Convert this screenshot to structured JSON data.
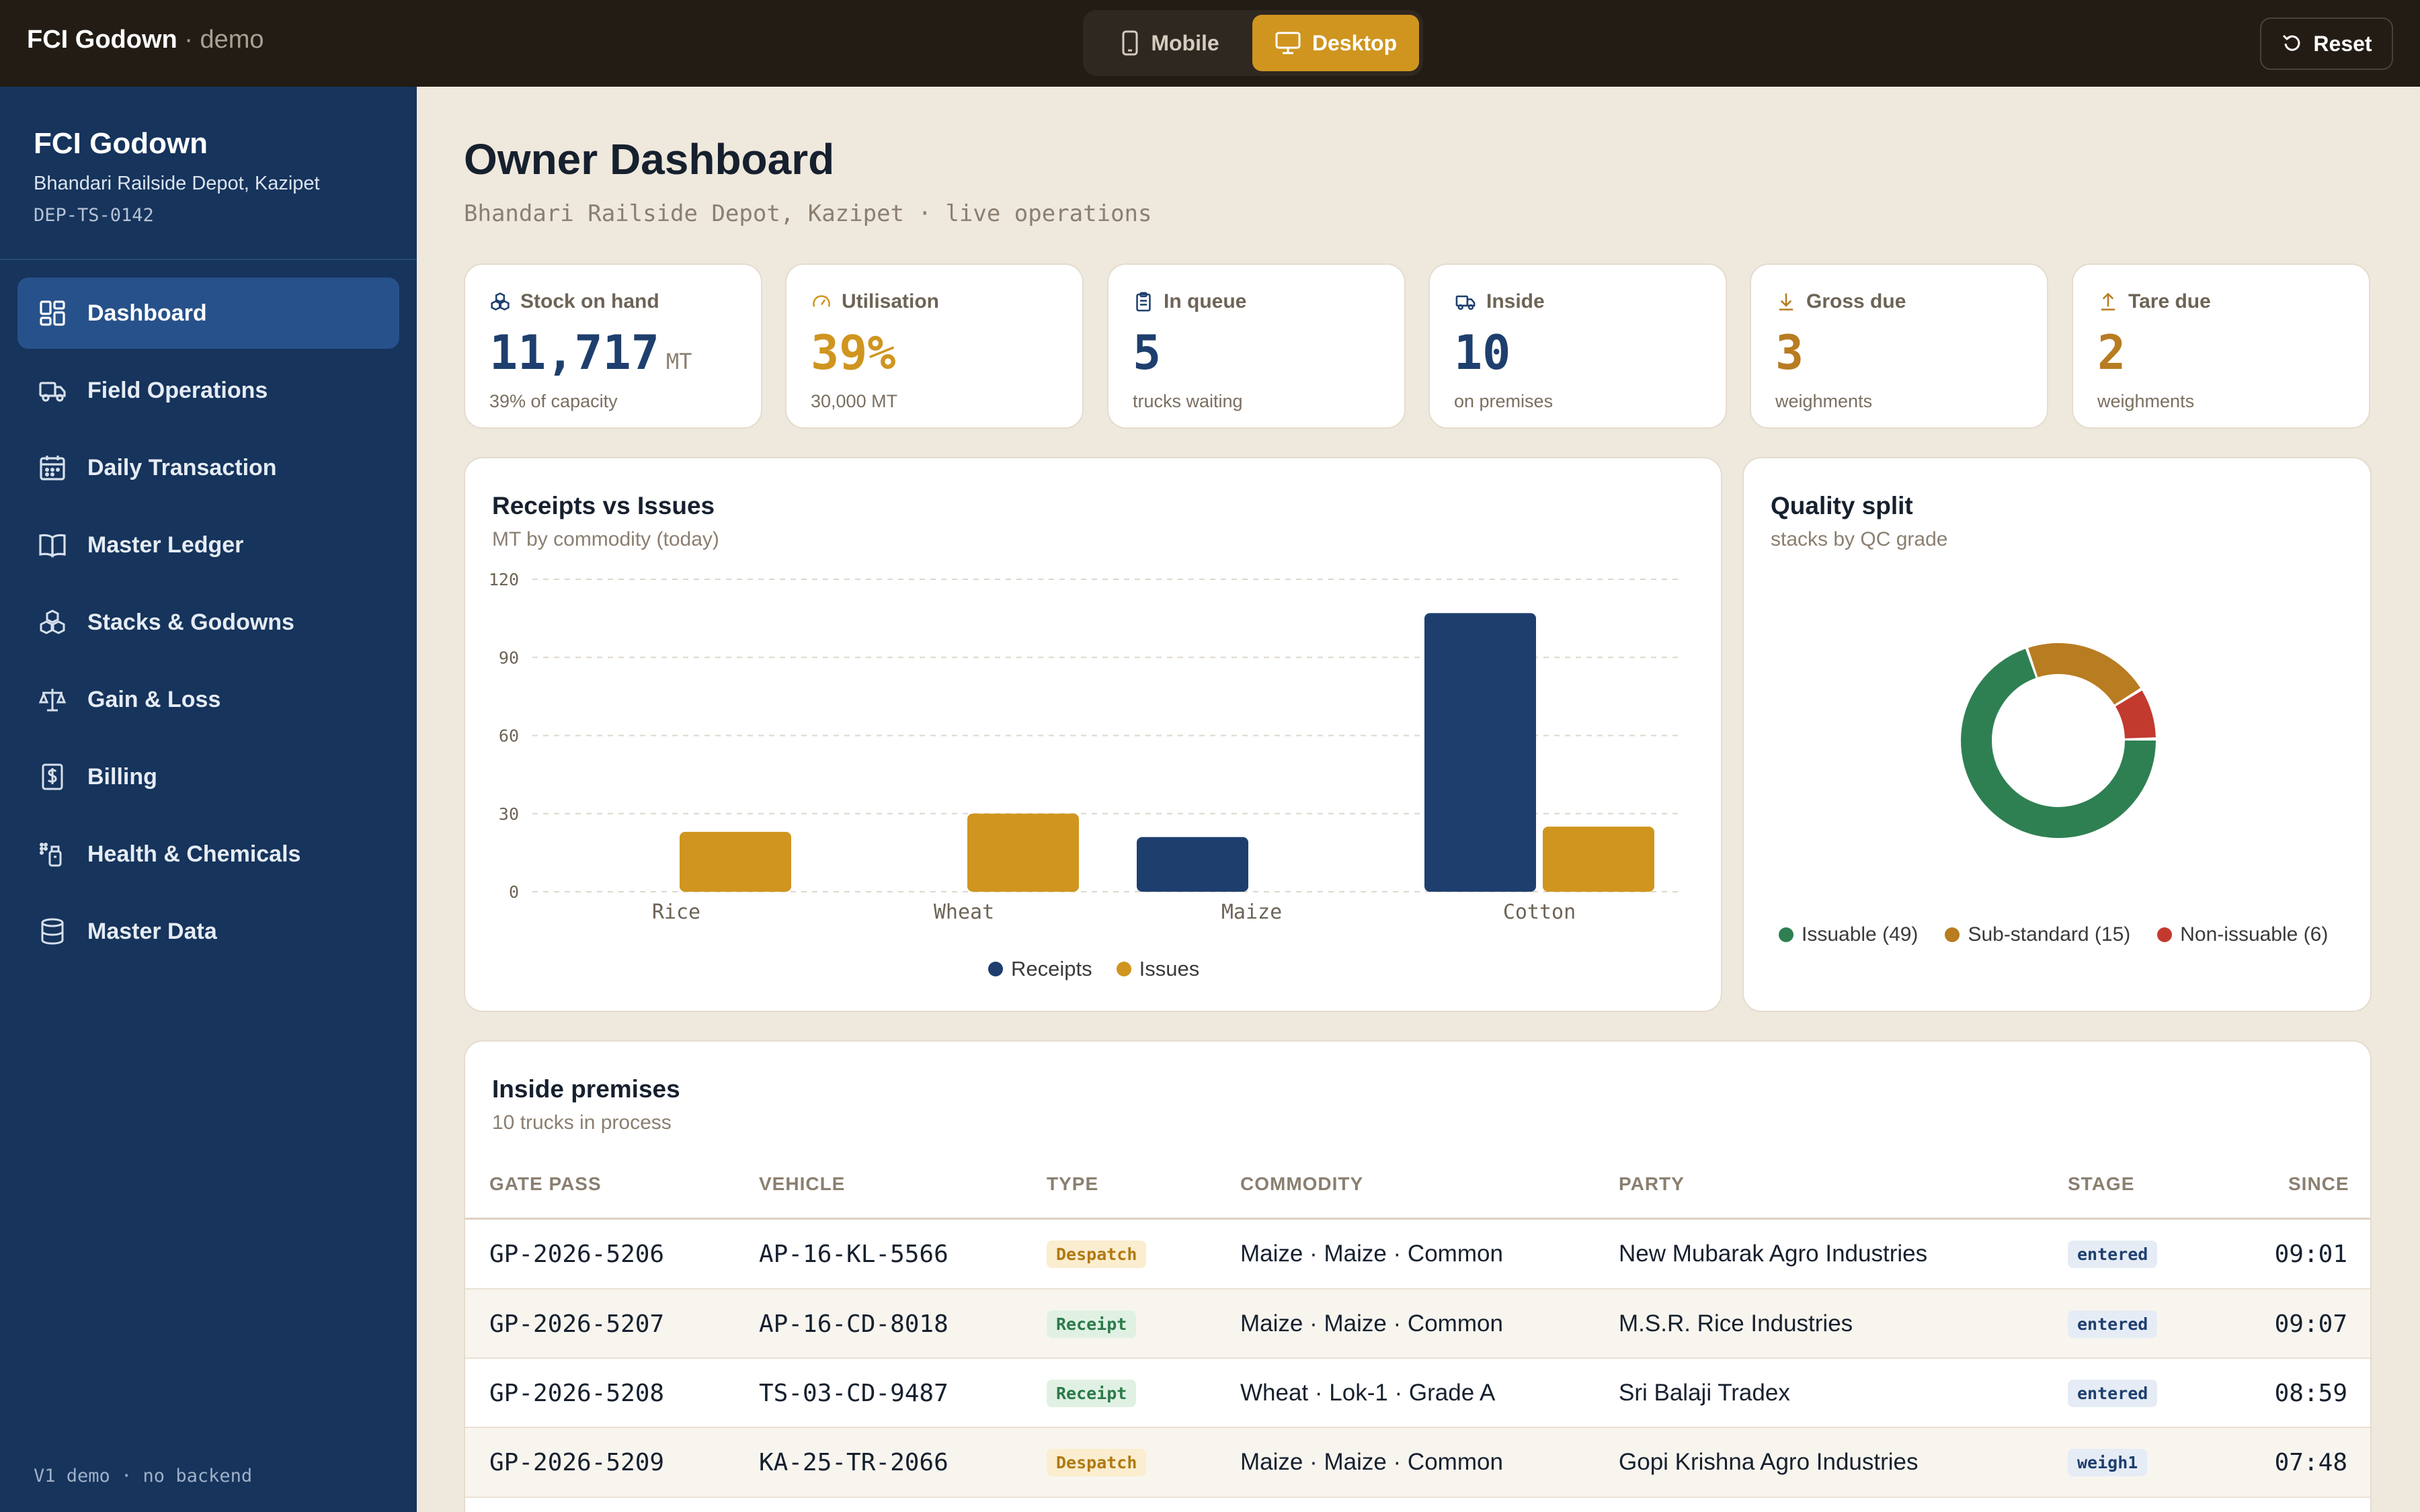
{
  "topbar": {
    "brand": "FCI Godown",
    "brand_suffix": "· demo",
    "mobile_label": "Mobile",
    "desktop_label": "Desktop",
    "reset_label": "Reset"
  },
  "sidebar": {
    "title": "FCI Godown",
    "subtitle": "Bhandari Railside Depot, Kazipet",
    "code": "DEP-TS-0142",
    "items": [
      {
        "label": "Dashboard",
        "icon": "dashboard-icon",
        "active": true
      },
      {
        "label": "Field Operations",
        "icon": "truck-icon"
      },
      {
        "label": "Daily Transaction",
        "icon": "calendar-icon"
      },
      {
        "label": "Master Ledger",
        "icon": "book-icon"
      },
      {
        "label": "Stacks & Godowns",
        "icon": "boxes-icon"
      },
      {
        "label": "Gain & Loss",
        "icon": "scale-icon"
      },
      {
        "label": "Billing",
        "icon": "receipt-icon"
      },
      {
        "label": "Health & Chemicals",
        "icon": "spray-icon"
      },
      {
        "label": "Master Data",
        "icon": "database-icon"
      }
    ],
    "footer": "V1 demo · no backend"
  },
  "header": {
    "title": "Owner Dashboard",
    "subtitle": "Bhandari Railside Depot, Kazipet · live operations"
  },
  "kpis": [
    {
      "label": "Stock on hand",
      "value": "11,717",
      "unit": "MT",
      "note": "39% of capacity",
      "icon": "boxes-icon",
      "color": "#1e3f6e"
    },
    {
      "label": "Utilisation",
      "value": "39%",
      "unit": "",
      "note": "30,000 MT",
      "icon": "gauge-icon",
      "color": "#cf951f"
    },
    {
      "label": "In queue",
      "value": "5",
      "unit": "",
      "note": "trucks waiting",
      "icon": "clipboard-icon",
      "color": "#1e3f6e"
    },
    {
      "label": "Inside",
      "value": "10",
      "unit": "",
      "note": "on premises",
      "icon": "truck-icon",
      "color": "#1e3f6e"
    },
    {
      "label": "Gross due",
      "value": "3",
      "unit": "",
      "note": "weighments",
      "icon": "arrow-down-icon",
      "color": "#b87c21"
    },
    {
      "label": "Tare due",
      "value": "2",
      "unit": "",
      "note": "weighments",
      "icon": "arrow-up-icon",
      "color": "#b87c21"
    }
  ],
  "receipts_chart": {
    "title": "Receipts vs Issues",
    "subtitle": "MT by commodity (today)"
  },
  "quality_chart": {
    "title": "Quality split",
    "subtitle": "stacks by QC grade"
  },
  "chart_data": [
    {
      "type": "bar",
      "title": "Receipts vs Issues",
      "categories": [
        "Rice",
        "Wheat",
        "Maize",
        "Cotton"
      ],
      "series": [
        {
          "name": "Receipts",
          "values": [
            0,
            0,
            21,
            107
          ],
          "color": "#1e3f6e"
        },
        {
          "name": "Issues",
          "values": [
            23,
            30,
            0,
            25
          ],
          "color": "#cf951f"
        }
      ],
      "yticks": [
        0,
        30,
        60,
        90,
        120
      ],
      "ylim": [
        0,
        120
      ],
      "grid": true,
      "legend": "bottom"
    },
    {
      "type": "pie",
      "title": "Quality split",
      "labels": [
        "Issuable (49)",
        "Sub-standard (15)",
        "Non-issuable (6)"
      ],
      "values": [
        49,
        15,
        6
      ],
      "colors": [
        "#2e8052",
        "#b87c21",
        "#c23a2e"
      ],
      "donut": true,
      "legend": "bottom"
    }
  ],
  "table": {
    "title": "Inside premises",
    "subtitle": "10 trucks in process",
    "columns": [
      "GATE PASS",
      "VEHICLE",
      "TYPE",
      "COMMODITY",
      "PARTY",
      "STAGE",
      "SINCE"
    ],
    "rows": [
      {
        "gate_pass": "GP-2026-5206",
        "vehicle": "AP-16-KL-5566",
        "type": "Despatch",
        "commodity": "Maize · Maize · Common",
        "party": "New Mubarak Agro Industries",
        "stage": "entered",
        "since": "09:01"
      },
      {
        "gate_pass": "GP-2026-5207",
        "vehicle": "AP-16-CD-8018",
        "type": "Receipt",
        "commodity": "Maize · Maize · Common",
        "party": "M.S.R. Rice Industries",
        "stage": "entered",
        "since": "09:07"
      },
      {
        "gate_pass": "GP-2026-5208",
        "vehicle": "TS-03-CD-9487",
        "type": "Receipt",
        "commodity": "Wheat · Lok-1 · Grade A",
        "party": "Sri Balaji Tradex",
        "stage": "entered",
        "since": "08:59"
      },
      {
        "gate_pass": "GP-2026-5209",
        "vehicle": "KA-25-TR-2066",
        "type": "Despatch",
        "commodity": "Maize · Maize · Common",
        "party": "Gopi Krishna Agro Industries",
        "stage": "weigh1",
        "since": "07:48"
      }
    ]
  }
}
